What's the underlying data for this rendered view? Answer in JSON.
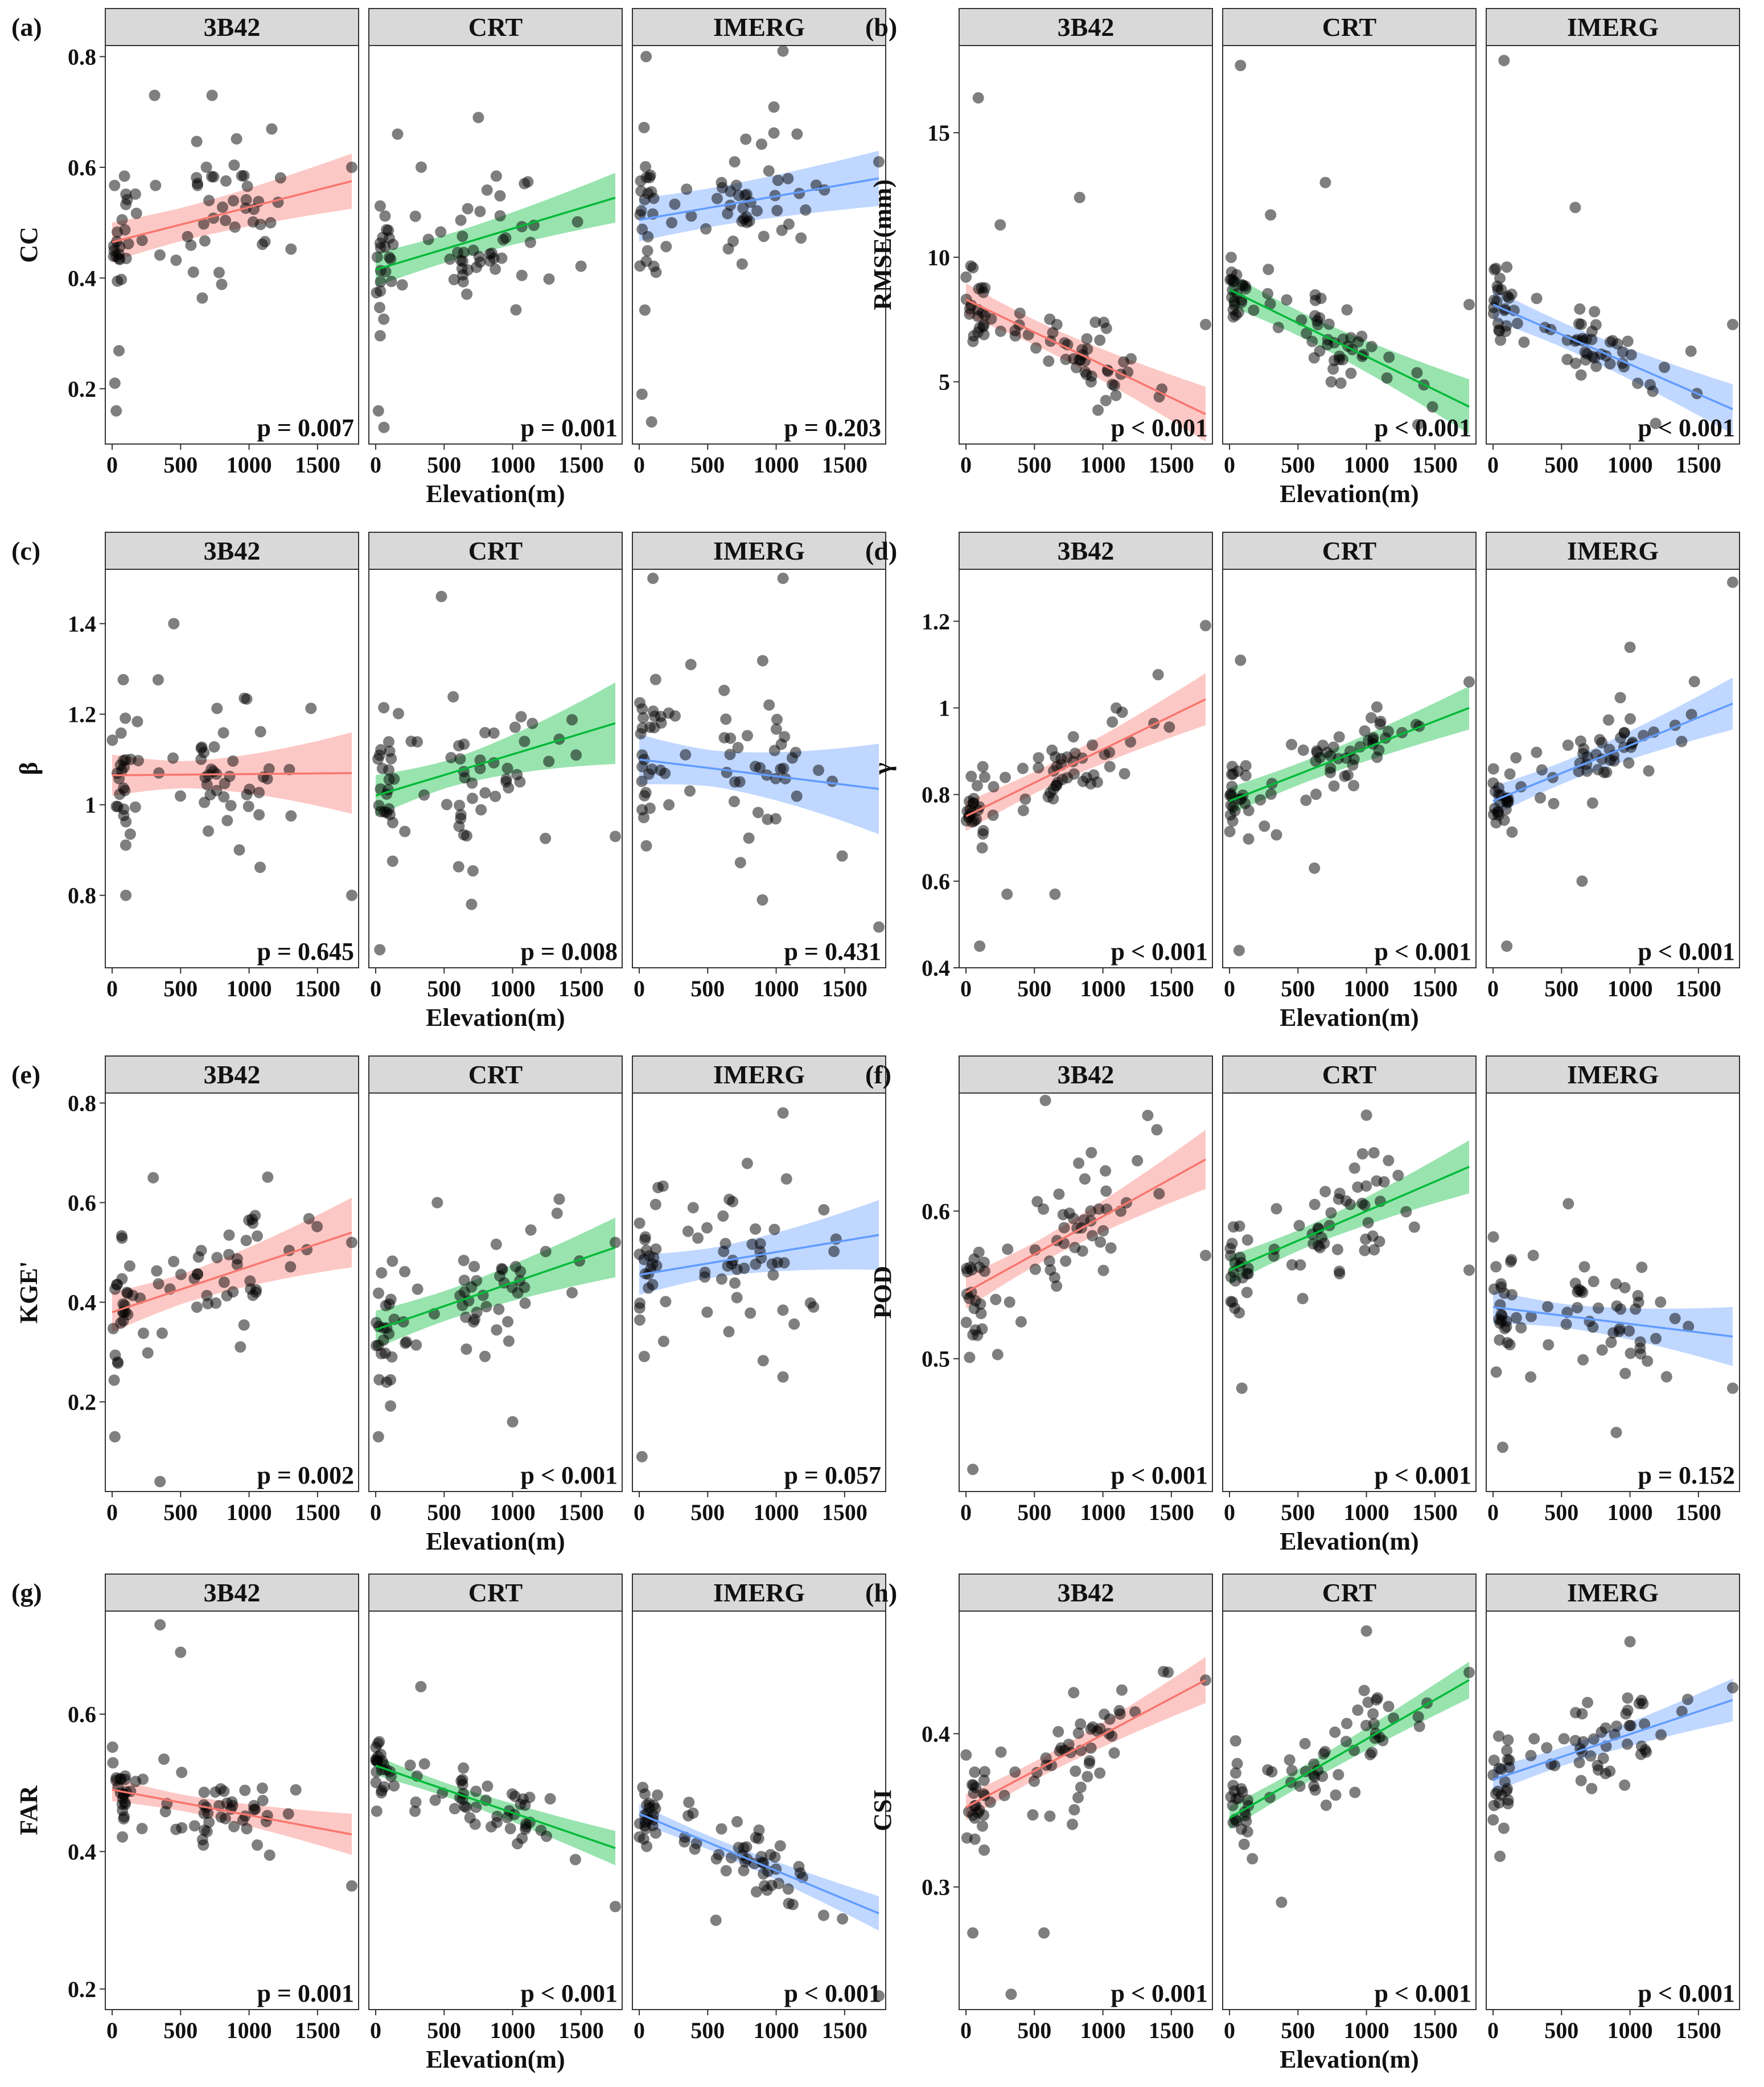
{
  "figure": {
    "description_free": true,
    "x_axis_title": "Elevation",
    "x_axis_unit": "(m)",
    "x_ticks": [
      0,
      500,
      1000,
      1500
    ],
    "products": [
      {
        "name": "3B42",
        "color": "#F8766D"
      },
      {
        "name": "CRT",
        "color": "#00BA38"
      },
      {
        "name": "IMERG",
        "color": "#619CFF"
      }
    ]
  },
  "chart_data": [
    {
      "type": "scatter",
      "letter": "(a)",
      "ylabel": "CC",
      "xlabel": "Elevation(m)",
      "xlim": [
        -50,
        1800
      ],
      "ylim": [
        0.1,
        0.82
      ],
      "yticks": [
        0.2,
        0.4,
        0.6,
        0.8
      ],
      "series": [
        {
          "name": "3B42",
          "p": "p = 0.007",
          "fit": [
            0,
            0.465,
            1750,
            0.575
          ],
          "band": [
            0.03,
            0.05
          ],
          "seed": 11,
          "sd": 0.11,
          "outliers": [
            [
              30,
              0.16
            ],
            [
              20,
              0.21
            ],
            [
              310,
              0.73
            ],
            [
              730,
              0.73
            ],
            [
              1750,
              0.6
            ]
          ]
        },
        {
          "name": "CRT",
          "p": "p = 0.001",
          "fit": [
            0,
            0.415,
            1750,
            0.545
          ],
          "band": [
            0.025,
            0.045
          ],
          "seed": 23,
          "sd": 0.1,
          "outliers": [
            [
              60,
              0.13
            ],
            [
              20,
              0.16
            ],
            [
              160,
              0.66
            ],
            [
              750,
              0.69
            ]
          ]
        },
        {
          "name": "IMERG",
          "p": "p = 0.203",
          "fit": [
            0,
            0.505,
            1750,
            0.58
          ],
          "band": [
            0.035,
            0.05
          ],
          "seed": 37,
          "sd": 0.11,
          "outliers": [
            [
              50,
              0.8
            ],
            [
              20,
              0.19
            ],
            [
              90,
              0.14
            ],
            [
              1050,
              0.81
            ],
            [
              1750,
              0.61
            ]
          ]
        }
      ]
    },
    {
      "type": "scatter",
      "letter": "(b)",
      "ylabel": "RMSE(mm)",
      "xlabel": "Elevation(m)",
      "xlim": [
        -50,
        1800
      ],
      "ylim": [
        2.5,
        18.5
      ],
      "yticks": [
        5,
        10,
        15
      ],
      "series": [
        {
          "name": "3B42",
          "p": "p < 0.001",
          "fit": [
            0,
            8.3,
            1750,
            3.7
          ],
          "band": [
            0.5,
            1.1
          ],
          "seed": 41,
          "sd": 1.4,
          "outliers": [
            [
              90,
              16.4
            ],
            [
              830,
              12.4
            ],
            [
              1750,
              7.3
            ],
            [
              250,
              11.3
            ]
          ]
        },
        {
          "name": "CRT",
          "p": "p < 0.001",
          "fit": [
            0,
            8.7,
            1750,
            4.0
          ],
          "band": [
            0.5,
            1.1
          ],
          "seed": 53,
          "sd": 1.3,
          "outliers": [
            [
              80,
              17.7
            ],
            [
              700,
              13.0
            ],
            [
              1750,
              8.1
            ],
            [
              300,
              11.7
            ]
          ]
        },
        {
          "name": "IMERG",
          "p": "p < 0.001",
          "fit": [
            0,
            8.1,
            1750,
            3.9
          ],
          "band": [
            0.5,
            1.0
          ],
          "seed": 67,
          "sd": 1.3,
          "outliers": [
            [
              80,
              17.9
            ],
            [
              600,
              12.0
            ],
            [
              1750,
              7.3
            ]
          ]
        }
      ]
    },
    {
      "type": "scatter",
      "letter": "(c)",
      "ylabel": "β",
      "xlabel": "Elevation(m)",
      "xlim": [
        -50,
        1800
      ],
      "ylim": [
        0.64,
        1.52
      ],
      "yticks": [
        0.8,
        1.0,
        1.2,
        1.4
      ],
      "series": [
        {
          "name": "3B42",
          "p": "p = 0.645",
          "fit": [
            0,
            1.065,
            1750,
            1.07
          ],
          "band": [
            0.03,
            0.09
          ],
          "seed": 71,
          "sd": 0.14,
          "outliers": [
            [
              450,
              1.4
            ],
            [
              1750,
              0.8
            ],
            [
              100,
              0.8
            ]
          ]
        },
        {
          "name": "CRT",
          "p": "p = 0.008",
          "fit": [
            0,
            1.02,
            1750,
            1.18
          ],
          "band": [
            0.03,
            0.09
          ],
          "seed": 83,
          "sd": 0.15,
          "outliers": [
            [
              480,
              1.46
            ],
            [
              30,
              0.68
            ],
            [
              700,
              0.78
            ],
            [
              1750,
              0.93
            ]
          ]
        },
        {
          "name": "IMERG",
          "p": "p = 0.431",
          "fit": [
            0,
            1.1,
            1750,
            1.035
          ],
          "band": [
            0.04,
            0.1
          ],
          "seed": 97,
          "sd": 0.16,
          "outliers": [
            [
              100,
              1.5
            ],
            [
              1050,
              1.5
            ],
            [
              1750,
              0.73
            ],
            [
              900,
              0.79
            ]
          ]
        }
      ]
    },
    {
      "type": "scatter",
      "letter": "(d)",
      "ylabel": "γ",
      "xlabel": "Elevation(m)",
      "xlim": [
        -50,
        1800
      ],
      "ylim": [
        0.4,
        1.32
      ],
      "yticks": [
        0.4,
        0.6,
        0.8,
        1.0,
        1.2
      ],
      "series": [
        {
          "name": "3B42",
          "p": "p < 0.001",
          "fit": [
            0,
            0.75,
            1750,
            1.02
          ],
          "band": [
            0.025,
            0.06
          ],
          "seed": 101,
          "sd": 0.08,
          "outliers": [
            [
              100,
              0.45
            ],
            [
              300,
              0.57
            ],
            [
              650,
              0.57
            ],
            [
              1750,
              1.19
            ]
          ]
        },
        {
          "name": "CRT",
          "p": "p < 0.001",
          "fit": [
            0,
            0.785,
            1750,
            1.0
          ],
          "band": [
            0.025,
            0.05
          ],
          "seed": 113,
          "sd": 0.08,
          "outliers": [
            [
              70,
              0.44
            ],
            [
              620,
              0.63
            ],
            [
              1750,
              1.06
            ],
            [
              80,
              1.11
            ]
          ]
        },
        {
          "name": "IMERG",
          "p": "p < 0.001",
          "fit": [
            0,
            0.785,
            1750,
            1.01
          ],
          "band": [
            0.025,
            0.06
          ],
          "seed": 127,
          "sd": 0.08,
          "outliers": [
            [
              100,
              0.45
            ],
            [
              650,
              0.6
            ],
            [
              1750,
              1.29
            ],
            [
              1000,
              1.14
            ]
          ]
        }
      ]
    },
    {
      "type": "scatter",
      "letter": "(e)",
      "ylabel": "KGE'",
      "xlabel": "Elevation(m)",
      "xlim": [
        -50,
        1800
      ],
      "ylim": [
        0.02,
        0.82
      ],
      "yticks": [
        0.2,
        0.4,
        0.6,
        0.8
      ],
      "series": [
        {
          "name": "3B42",
          "p": "p = 0.002",
          "fit": [
            0,
            0.38,
            1750,
            0.54
          ],
          "band": [
            0.03,
            0.07
          ],
          "seed": 131,
          "sd": 0.11,
          "outliers": [
            [
              20,
              0.13
            ],
            [
              350,
              0.04
            ],
            [
              300,
              0.65
            ],
            [
              1750,
              0.52
            ]
          ]
        },
        {
          "name": "CRT",
          "p": "p < 0.001",
          "fit": [
            0,
            0.345,
            1750,
            0.51
          ],
          "band": [
            0.03,
            0.06
          ],
          "seed": 149,
          "sd": 0.1,
          "outliers": [
            [
              20,
              0.13
            ],
            [
              1000,
              0.16
            ],
            [
              450,
              0.6
            ],
            [
              1750,
              0.52
            ]
          ]
        },
        {
          "name": "IMERG",
          "p": "p = 0.057",
          "fit": [
            0,
            0.455,
            1750,
            0.535
          ],
          "band": [
            0.03,
            0.07
          ],
          "seed": 157,
          "sd": 0.12,
          "outliers": [
            [
              20,
              0.09
            ],
            [
              1050,
              0.78
            ],
            [
              1050,
              0.25
            ]
          ]
        }
      ]
    },
    {
      "type": "scatter",
      "letter": "(f)",
      "ylabel": "POD",
      "xlabel": "Elevation(m)",
      "xlim": [
        -50,
        1800
      ],
      "ylim": [
        0.41,
        0.68
      ],
      "yticks": [
        0.5,
        0.6
      ],
      "series": [
        {
          "name": "3B42",
          "p": "p < 0.001",
          "fit": [
            0,
            0.545,
            1750,
            0.635
          ],
          "band": [
            0.008,
            0.02
          ],
          "seed": 163,
          "sd": 0.035,
          "outliers": [
            [
              50,
              0.425
            ],
            [
              580,
              0.675
            ],
            [
              1750,
              0.57
            ]
          ]
        },
        {
          "name": "CRT",
          "p": "p < 0.001",
          "fit": [
            0,
            0.56,
            1750,
            0.63
          ],
          "band": [
            0.007,
            0.018
          ],
          "seed": 173,
          "sd": 0.03,
          "outliers": [
            [
              90,
              0.48
            ],
            [
              1000,
              0.665
            ],
            [
              1750,
              0.56
            ]
          ]
        },
        {
          "name": "IMERG",
          "p": "p = 0.152",
          "fit": [
            0,
            0.535,
            1750,
            0.515
          ],
          "band": [
            0.008,
            0.02
          ],
          "seed": 181,
          "sd": 0.035,
          "outliers": [
            [
              70,
              0.44
            ],
            [
              1750,
              0.48
            ],
            [
              550,
              0.605
            ],
            [
              900,
              0.45
            ]
          ]
        }
      ]
    },
    {
      "type": "scatter",
      "letter": "(g)",
      "ylabel": "FAR",
      "xlabel": "Elevation(m)",
      "xlim": [
        -50,
        1800
      ],
      "ylim": [
        0.17,
        0.75
      ],
      "yticks": [
        0.2,
        0.4,
        0.6
      ],
      "series": [
        {
          "name": "3B42",
          "p": "p = 0.001",
          "fit": [
            0,
            0.49,
            1750,
            0.425
          ],
          "band": [
            0.012,
            0.03
          ],
          "seed": 191,
          "sd": 0.045,
          "outliers": [
            [
              350,
              0.73
            ],
            [
              500,
              0.69
            ],
            [
              1750,
              0.35
            ]
          ]
        },
        {
          "name": "CRT",
          "p": "p < 0.001",
          "fit": [
            0,
            0.525,
            1750,
            0.405
          ],
          "band": [
            0.01,
            0.025
          ],
          "seed": 199,
          "sd": 0.04,
          "outliers": [
            [
              330,
              0.64
            ],
            [
              1750,
              0.32
            ]
          ]
        },
        {
          "name": "IMERG",
          "p": "p < 0.001",
          "fit": [
            0,
            0.455,
            1750,
            0.31
          ],
          "band": [
            0.01,
            0.025
          ],
          "seed": 211,
          "sd": 0.04,
          "outliers": [
            [
              1750,
              0.19
            ],
            [
              560,
              0.3
            ]
          ]
        }
      ]
    },
    {
      "type": "scatter",
      "letter": "(h)",
      "ylabel": "CSI",
      "xlabel": "Elevation(m)",
      "xlim": [
        -50,
        1800
      ],
      "ylim": [
        0.22,
        0.48
      ],
      "yticks": [
        0.3,
        0.4
      ],
      "series": [
        {
          "name": "3B42",
          "p": "p < 0.001",
          "fit": [
            0,
            0.352,
            1750,
            0.435
          ],
          "band": [
            0.006,
            0.015
          ],
          "seed": 223,
          "sd": 0.03,
          "outliers": [
            [
              50,
              0.27
            ],
            [
              330,
              0.23
            ],
            [
              570,
              0.27
            ],
            [
              1750,
              0.435
            ]
          ]
        },
        {
          "name": "CRT",
          "p": "p < 0.001",
          "fit": [
            0,
            0.345,
            1750,
            0.435
          ],
          "band": [
            0.006,
            0.012
          ],
          "seed": 227,
          "sd": 0.028,
          "outliers": [
            [
              380,
              0.29
            ],
            [
              1000,
              0.467
            ],
            [
              1750,
              0.44
            ]
          ]
        },
        {
          "name": "IMERG",
          "p": "p < 0.001",
          "fit": [
            0,
            0.37,
            1750,
            0.422
          ],
          "band": [
            0.006,
            0.014
          ],
          "seed": 229,
          "sd": 0.028,
          "outliers": [
            [
              50,
              0.32
            ],
            [
              1000,
              0.46
            ],
            [
              1750,
              0.43
            ]
          ]
        }
      ]
    }
  ]
}
